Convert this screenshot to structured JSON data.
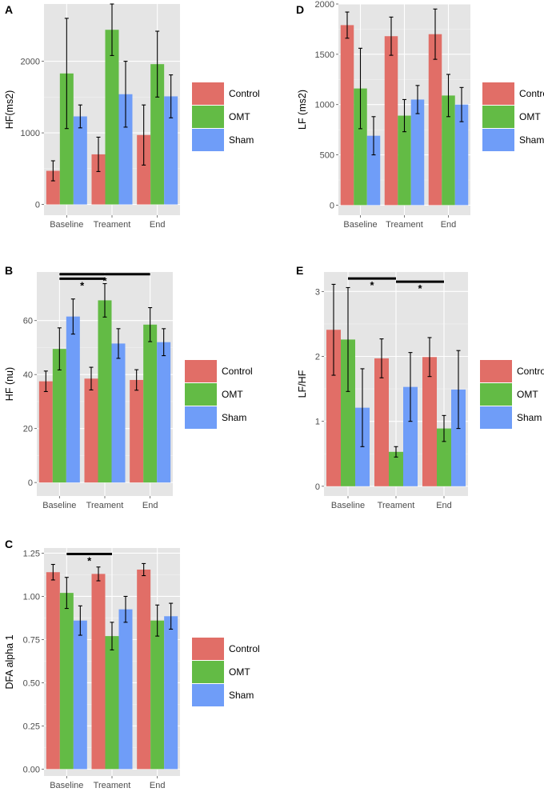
{
  "figure": {
    "legend": [
      "Control",
      "OMT",
      "Sham"
    ],
    "colors": {
      "Control": "#E16E67",
      "OMT": "#63BB45",
      "Sham": "#6F9DF8",
      "panel_bg": "#E5E5E5",
      "grid": "#FFFFFF"
    }
  },
  "chart_data": [
    {
      "panel": "A",
      "type": "bar",
      "ylabel": "HF(ms2)",
      "categories": [
        "Baseline",
        "Treament",
        "End"
      ],
      "ylim": [
        -150,
        2800
      ],
      "yticks": [
        0,
        1000,
        2000
      ],
      "series": [
        {
          "name": "Control",
          "values": [
            470,
            700,
            970
          ],
          "err": [
            140,
            240,
            420
          ]
        },
        {
          "name": "OMT",
          "values": [
            1830,
            2440,
            1960
          ],
          "err": [
            770,
            360,
            460
          ]
        },
        {
          "name": "Sham",
          "values": [
            1230,
            1540,
            1510
          ],
          "err": [
            160,
            460,
            300
          ]
        }
      ],
      "significance": []
    },
    {
      "panel": "D",
      "type": "bar",
      "ylabel": "LF (ms2)",
      "categories": [
        "Baseline",
        "Treament",
        "End"
      ],
      "ylim": [
        -100,
        2000
      ],
      "yticks": [
        0,
        500,
        1000,
        1500,
        2000
      ],
      "series": [
        {
          "name": "Control",
          "values": [
            1790,
            1680,
            1700
          ],
          "err": [
            130,
            190,
            250
          ]
        },
        {
          "name": "OMT",
          "values": [
            1160,
            890,
            1090
          ],
          "err": [
            400,
            160,
            210
          ]
        },
        {
          "name": "Sham",
          "values": [
            690,
            1050,
            1000
          ],
          "err": [
            190,
            140,
            170
          ]
        }
      ],
      "significance": []
    },
    {
      "panel": "B",
      "type": "bar",
      "ylabel": "HF (nu)",
      "categories": [
        "Baseline",
        "Treament",
        "End"
      ],
      "ylim": [
        -5,
        78
      ],
      "yticks": [
        0,
        20,
        40,
        60
      ],
      "series": [
        {
          "name": "Control",
          "values": [
            37.5,
            38.5,
            38
          ],
          "err": [
            3.8,
            4.2,
            3.8
          ]
        },
        {
          "name": "OMT",
          "values": [
            49.5,
            67.5,
            58.5
          ],
          "err": [
            7.8,
            6.2,
            6.3
          ]
        },
        {
          "name": "Sham",
          "values": [
            61.5,
            51.5,
            52
          ],
          "err": [
            6.5,
            5.5,
            5
          ]
        }
      ],
      "significance": [
        {
          "from": [
            0,
            0.5
          ],
          "to": [
            1,
            0.5
          ],
          "y": 75.5,
          "label": "*"
        },
        {
          "from": [
            0,
            0.5
          ],
          "to": [
            2,
            0.5
          ],
          "y": 77.2,
          "label": "*"
        }
      ]
    },
    {
      "panel": "E",
      "type": "bar",
      "ylabel": "LF/HF",
      "categories": [
        "Baseline",
        "Treament",
        "End"
      ],
      "ylim": [
        -0.15,
        3.3
      ],
      "yticks": [
        0,
        1,
        2,
        3
      ],
      "series": [
        {
          "name": "Control",
          "values": [
            2.41,
            1.97,
            1.99
          ],
          "err": [
            0.7,
            0.3,
            0.3
          ]
        },
        {
          "name": "OMT",
          "values": [
            2.26,
            0.53,
            0.89
          ],
          "err": [
            0.8,
            0.08,
            0.2
          ]
        },
        {
          "name": "Sham",
          "values": [
            1.21,
            1.53,
            1.49
          ],
          "err": [
            0.6,
            0.53,
            0.6
          ]
        }
      ],
      "significance": [
        {
          "from": [
            0,
            0.5
          ],
          "to": [
            1,
            0.5
          ],
          "y": 3.2,
          "label": "*"
        },
        {
          "from": [
            1,
            0.5
          ],
          "to": [
            2,
            0.5
          ],
          "y": 3.15,
          "label": "*"
        }
      ]
    },
    {
      "panel": "C",
      "type": "bar",
      "ylabel": "DFA alpha 1",
      "categories": [
        "Baseline",
        "Treament",
        "End"
      ],
      "ylim": [
        -0.04,
        1.28
      ],
      "yticks": [
        0.0,
        0.25,
        0.5,
        0.75,
        1.0,
        1.25
      ],
      "ytick_labels": [
        "0.00",
        "0.25",
        "0.50",
        "0.75",
        "1.00",
        "1.25"
      ],
      "series": [
        {
          "name": "Control",
          "values": [
            1.14,
            1.13,
            1.155
          ],
          "err": [
            0.045,
            0.04,
            0.035
          ]
        },
        {
          "name": "OMT",
          "values": [
            1.02,
            0.77,
            0.86
          ],
          "err": [
            0.09,
            0.08,
            0.09
          ]
        },
        {
          "name": "Sham",
          "values": [
            0.86,
            0.925,
            0.885
          ],
          "err": [
            0.085,
            0.075,
            0.075
          ]
        }
      ],
      "significance": [
        {
          "from": [
            0,
            0.5
          ],
          "to": [
            1,
            0.5
          ],
          "y": 1.245,
          "label": "*"
        }
      ]
    }
  ]
}
